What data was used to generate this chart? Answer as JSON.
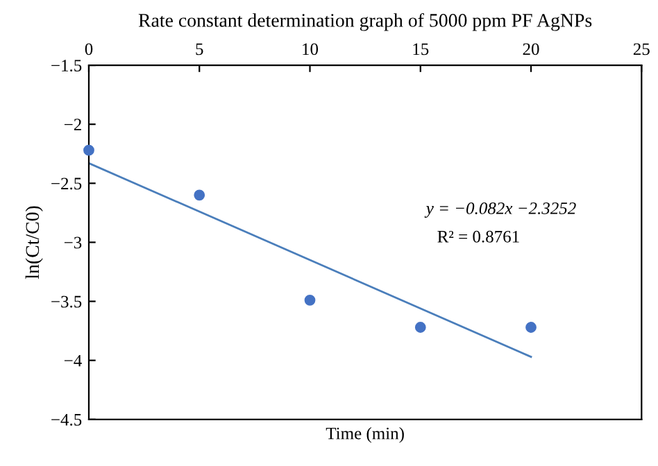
{
  "chart_data": {
    "type": "scatter",
    "title": "Rate constant determination graph of 5000 ppm PF AgNPs",
    "xlabel": "Time (min)",
    "ylabel": "ln(Ct/C0)",
    "series": [
      {
        "color": "#4472c4",
        "x": [
          0,
          5,
          10,
          15,
          20
        ],
        "values": [
          -2.22,
          -2.6,
          -3.49,
          -3.72,
          -3.72
        ],
        "marker": "circle"
      },
      {
        "type": "line",
        "color": "#4a7ebb",
        "x": [
          0,
          20
        ],
        "values": [
          -2.33,
          -3.97
        ],
        "marker": "none",
        "line_style": "solid"
      }
    ],
    "xlim": [
      0,
      25
    ],
    "xticks": [
      0,
      5,
      10,
      15,
      20,
      25
    ],
    "ylim": [
      -4.5,
      -1.5
    ],
    "yticks": [
      -1.5,
      -2,
      -2.5,
      -3,
      -3.5,
      -4,
      -4.5
    ],
    "annotations": [
      "y = −0.082x −2.3252",
      "R² = 0.8761"
    ],
    "grid": false,
    "legend": false
  }
}
